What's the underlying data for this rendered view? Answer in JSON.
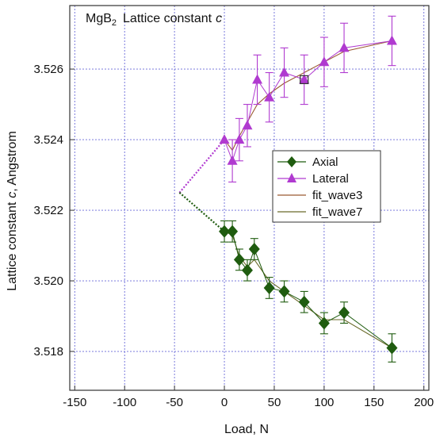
{
  "chart_data": {
    "type": "scatter",
    "title": "MgB",
    "title_sub": "2",
    "title_rest": "Lattice constant",
    "title_var": "c",
    "xlabel": "Load, N",
    "ylabel_pre": "Lattice constant",
    "ylabel_var": "c",
    "ylabel_post": ", Angstrom",
    "xlim": [
      -155,
      205
    ],
    "ylim": [
      3.5169,
      3.5278
    ],
    "x_ticks": [
      -150,
      -100,
      -50,
      0,
      50,
      100,
      150,
      200
    ],
    "x_tick_labels": [
      "-150",
      "-100",
      "-50",
      "0",
      "50",
      "100",
      "150",
      "200"
    ],
    "y_ticks": [
      3.518,
      3.52,
      3.522,
      3.524,
      3.526
    ],
    "y_tick_labels": [
      "3.518",
      "3.520",
      "3.522",
      "3.524",
      "3.526"
    ],
    "grid": true,
    "legend_position": "center-right",
    "series": [
      {
        "name": "Axial",
        "marker": "diamond",
        "color": "#1f5c0f",
        "x": [
          0,
          8,
          15,
          23,
          30,
          45,
          60,
          80,
          100,
          120,
          168
        ],
        "y": [
          3.5214,
          3.5214,
          3.5206,
          3.5203,
          3.5209,
          3.5198,
          3.5197,
          3.5194,
          3.5188,
          3.5191,
          3.5181
        ],
        "err": [
          0.0003,
          0.0003,
          0.0003,
          0.0003,
          0.0003,
          0.0003,
          0.0003,
          0.0003,
          0.0003,
          0.0003,
          0.0004
        ]
      },
      {
        "name": "Lateral",
        "marker": "triangle",
        "color": "#b03ad0",
        "x": [
          0,
          8,
          15,
          23,
          33,
          45,
          60,
          80,
          100,
          120,
          168
        ],
        "y": [
          3.524,
          3.5234,
          3.524,
          3.5244,
          3.5257,
          3.5252,
          3.5259,
          3.5257,
          3.5262,
          3.5266,
          3.5268
        ],
        "err": [
          0.0,
          0.0006,
          0.0006,
          0.0006,
          0.0007,
          0.0007,
          0.0007,
          0.0007,
          0.0007,
          0.0007,
          0.0007
        ]
      }
    ],
    "fits": [
      {
        "name": "fit_wave3",
        "color": "#9a5a32",
        "x": [
          0,
          8,
          15,
          23,
          33,
          45,
          60,
          80,
          100,
          120,
          168
        ],
        "y": [
          3.524,
          3.5237,
          3.5241,
          3.5245,
          3.525,
          3.5253,
          3.5256,
          3.5259,
          3.5262,
          3.5265,
          3.5268
        ]
      },
      {
        "name": "fit_wave7",
        "color": "#6a6a2a",
        "x": [
          0,
          8,
          15,
          23,
          30,
          45,
          60,
          80,
          100,
          120,
          168
        ],
        "y": [
          3.5214,
          3.5213,
          3.5207,
          3.5204,
          3.5206,
          3.52,
          3.5197,
          3.5193,
          3.5189,
          3.5189,
          3.5181
        ]
      }
    ],
    "extrapolation": {
      "vertex": [
        -45,
        3.5225
      ],
      "upper_end": [
        0,
        3.524
      ],
      "lower_end": [
        0,
        3.5214
      ],
      "upper_color": "#b03ad0",
      "lower_color": "#1f5c0f"
    },
    "highlighted_point": {
      "series": "Lateral",
      "x": 80,
      "y": 3.5257
    }
  }
}
